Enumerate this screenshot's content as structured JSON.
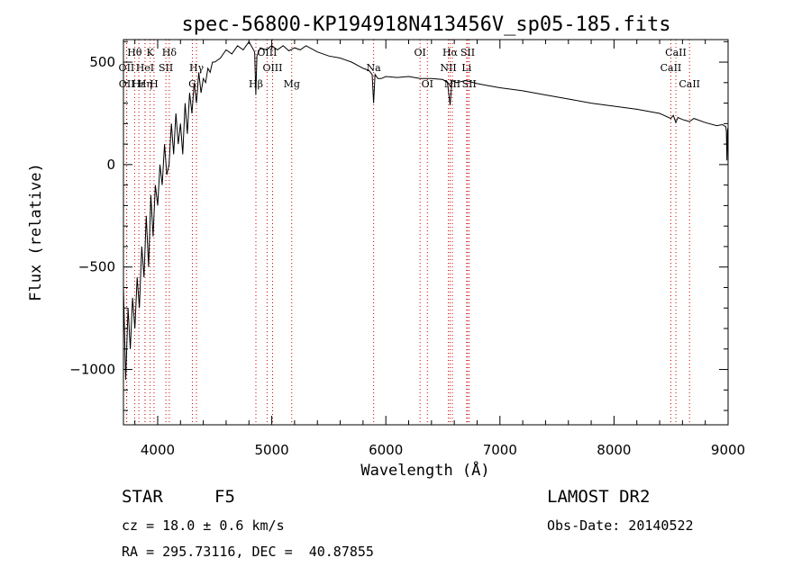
{
  "chart_data": {
    "type": "line",
    "title": "spec-56800-KP194918N413456V_sp05-185.fits",
    "xlabel": "Wavelength (Å)",
    "ylabel": "Flux (relative)",
    "xlim": [
      3700,
      9000
    ],
    "ylim": [
      -1270,
      610
    ],
    "x_ticks": [
      4000,
      5000,
      6000,
      7000,
      8000,
      9000
    ],
    "y_ticks": [
      -1000,
      -500,
      0,
      500
    ],
    "grid": false,
    "colors": {
      "line": "#000000",
      "marker": "#cc0000",
      "axes": "#000000"
    },
    "series": [
      {
        "x": [
          3700,
          3720,
          3740,
          3760,
          3780,
          3800,
          3820,
          3840,
          3860,
          3880,
          3900,
          3920,
          3940,
          3960,
          3980,
          4000,
          4020,
          4040,
          4060,
          4080,
          4100,
          4120,
          4140,
          4160,
          4180,
          4200,
          4220,
          4240,
          4260,
          4280,
          4300,
          4320,
          4340,
          4360,
          4380,
          4400,
          4420,
          4440,
          4460,
          4480,
          4500,
          4550,
          4600,
          4650,
          4700,
          4750,
          4800,
          4850,
          4860,
          4870,
          4900,
          4950,
          5000,
          5050,
          5100,
          5150,
          5200,
          5250,
          5300,
          5400,
          5500,
          5600,
          5700,
          5800,
          5850,
          5880,
          5893,
          5905,
          5930,
          5960,
          6000,
          6100,
          6200,
          6300,
          6400,
          6500,
          6540,
          6563,
          6580,
          6620,
          6700,
          6800,
          6900,
          7000,
          7200,
          7400,
          7600,
          7800,
          8000,
          8200,
          8400,
          8498,
          8520,
          8542,
          8560,
          8600,
          8662,
          8700,
          8800,
          8900,
          8950,
          8980,
          8985,
          8990,
          8995,
          9000
        ],
        "y": [
          -600,
          -1050,
          -700,
          -900,
          -650,
          -800,
          -550,
          -700,
          -400,
          -550,
          -250,
          -500,
          -150,
          -350,
          -100,
          -200,
          0,
          -100,
          100,
          -50,
          0,
          200,
          50,
          250,
          100,
          200,
          50,
          300,
          150,
          350,
          250,
          400,
          300,
          450,
          350,
          420,
          400,
          470,
          450,
          500,
          500,
          520,
          560,
          540,
          580,
          560,
          600,
          550,
          340,
          530,
          570,
          560,
          580,
          560,
          580,
          555,
          570,
          560,
          580,
          550,
          530,
          520,
          500,
          470,
          460,
          440,
          300,
          440,
          420,
          420,
          430,
          425,
          430,
          420,
          420,
          415,
          400,
          290,
          410,
          400,
          410,
          395,
          385,
          375,
          360,
          340,
          320,
          300,
          285,
          270,
          250,
          225,
          240,
          205,
          230,
          220,
          210,
          225,
          205,
          190,
          195,
          185,
          160,
          20,
          170,
          180
        ]
      }
    ],
    "lines": [
      {
        "label": "Hθ",
        "wl": 3798,
        "row": 0
      },
      {
        "label": "K",
        "wl": 3934,
        "row": 0
      },
      {
        "label": "Hδ",
        "wl": 4102,
        "row": 0
      },
      {
        "label": "OIII",
        "wl": 4959,
        "row": 0
      },
      {
        "label": "OI",
        "wl": 6300,
        "row": 0
      },
      {
        "label": "Hα",
        "wl": 6563,
        "row": 0
      },
      {
        "label": "SII",
        "wl": 6717,
        "row": 0
      },
      {
        "label": "CaII",
        "wl": 8542,
        "row": 0
      },
      {
        "label": "OII",
        "wl": 3727,
        "row": 1
      },
      {
        "label": "HeI",
        "wl": 3889,
        "row": 1
      },
      {
        "label": "SII",
        "wl": 4072,
        "row": 1
      },
      {
        "label": "Hγ",
        "wl": 4340,
        "row": 1
      },
      {
        "label": "OIII",
        "wl": 5007,
        "row": 1
      },
      {
        "label": "Na",
        "wl": 5893,
        "row": 1
      },
      {
        "label": "NII",
        "wl": 6548,
        "row": 1
      },
      {
        "label": "Li",
        "wl": 6708,
        "row": 1
      },
      {
        "label": "CaII",
        "wl": 8498,
        "row": 1
      },
      {
        "label": "OII",
        "wl": 3729,
        "row": 2
      },
      {
        "label": "Hε",
        "wl": 3835,
        "row": 2
      },
      {
        "label": "Hη",
        "wl": 3889,
        "row": 2
      },
      {
        "label": "H",
        "wl": 3968,
        "row": 2
      },
      {
        "label": "G",
        "wl": 4304,
        "row": 2
      },
      {
        "label": "Hβ",
        "wl": 4861,
        "row": 2
      },
      {
        "label": "Mg",
        "wl": 5175,
        "row": 2
      },
      {
        "label": "OI",
        "wl": 6364,
        "row": 2
      },
      {
        "label": "NII",
        "wl": 6583,
        "row": 2
      },
      {
        "label": "SII",
        "wl": 6731,
        "row": 2
      },
      {
        "label": "CaII",
        "wl": 8662,
        "row": 2
      }
    ]
  },
  "info": {
    "class": "STAR",
    "subclass": "F5",
    "cz": "cz = 18.0 ± 0.6 km/s",
    "radec": "RA = 295.73116, DEC =  40.87855",
    "survey": "LAMOST DR2",
    "obsdate": "Obs-Date: 20140522"
  }
}
